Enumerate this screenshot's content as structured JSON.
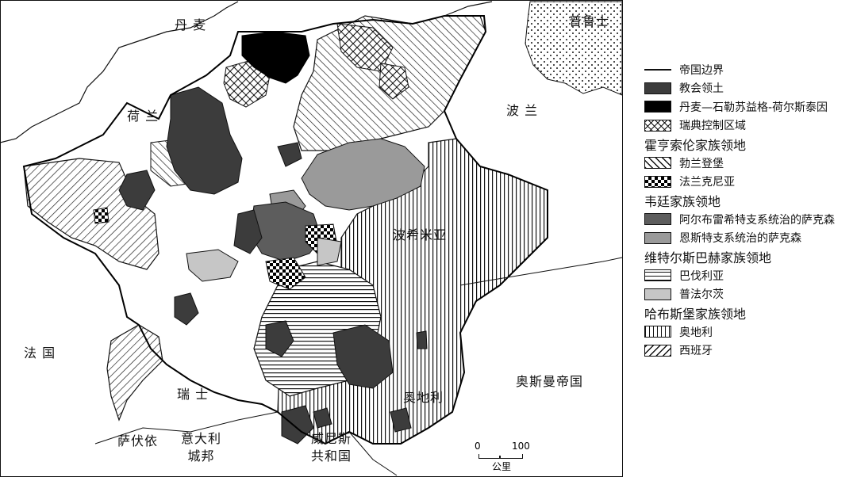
{
  "map": {
    "labels": {
      "denmark": "丹 麦",
      "prussia": "普鲁士",
      "netherlands": "荷 兰",
      "poland": "波 兰",
      "bohemia": "波希米亚",
      "france": "法 国",
      "austria": "奥地利",
      "ottoman": "奥斯曼帝国",
      "switzerland": "瑞 士",
      "savoy": "萨伏依",
      "italian_states": "意大利\n城邦",
      "venice": "威尼斯\n共和国"
    },
    "scale": {
      "zero": "0",
      "hundred": "100",
      "unit": "公里"
    }
  },
  "legend": {
    "border": "帝国边界",
    "church": "教会领土",
    "dsh": "丹麦—石勒苏益格-荷尔斯泰因",
    "sweden": "瑞典控制区域",
    "hohenzollern_title": "霍亨索伦家族领地",
    "brandenburg": "勃兰登堡",
    "franconia": "法兰克尼亚",
    "wettin_title": "韦廷家族领地",
    "albertine": "阿尔布雷希特支系统治的萨克森",
    "ernestine": "恩斯特支系统治的萨克森",
    "wittelsbach_title": "维特尔斯巴赫家族领地",
    "bavaria": "巴伐利亚",
    "palatinate": "普法尔茨",
    "habsburg_title": "哈布斯堡家族领地",
    "austria": "奥地利",
    "spain": "西班牙"
  },
  "colors": {
    "church": "#3c3c3c",
    "dsh": "#000000",
    "albertine": "#5d5d5d",
    "ernestine": "#9a9a9a",
    "palatinate": "#c6c6c6"
  }
}
